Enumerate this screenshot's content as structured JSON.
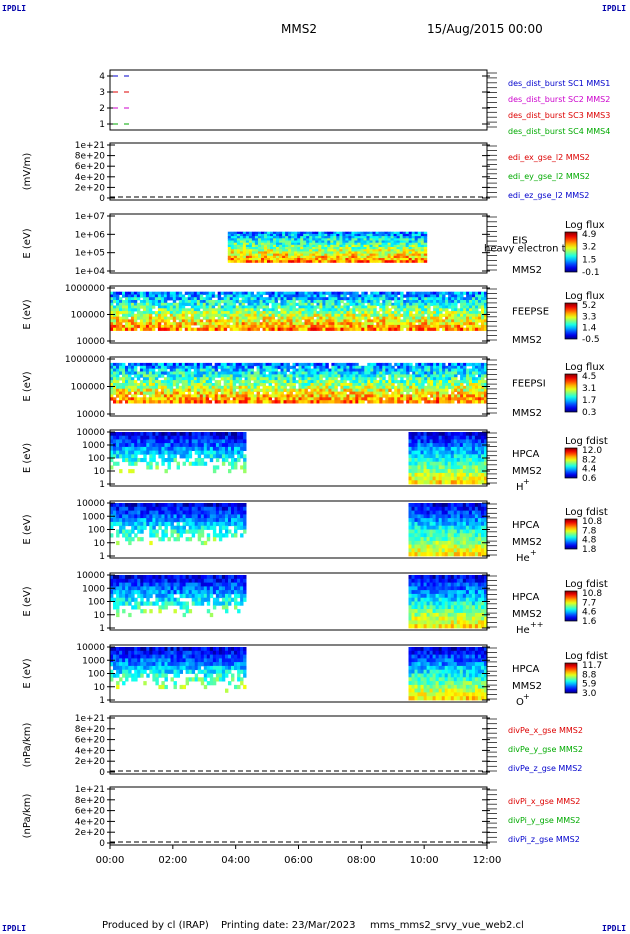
{
  "header": {
    "corner_label": "IPDLI",
    "spacecraft": "MMS2",
    "datetime": "15/Aug/2015 00:00"
  },
  "footer": {
    "produced_by": "Produced by cl (IRAP)",
    "printing_date": "Printing date: 23/Mar/2023",
    "filename": "mms_mms2_srvy_vue_web2.cl"
  },
  "colors": {
    "mms1": "#00aa00",
    "mms2": "#cc00cc",
    "mms3": "#dd0000",
    "mms4": "#0000cc",
    "x_comp": "#dd0000",
    "y_comp": "#00aa00",
    "z_comp": "#0000cc"
  },
  "chart_data": [
    {
      "type": "line",
      "panel": "burst",
      "ylabel": "",
      "yticks": [
        "4",
        "3",
        "2",
        "1"
      ],
      "legend": [
        {
          "name": "des_dist_burst SC1 MMS1",
          "color": "#0000cc"
        },
        {
          "name": "des_dist_burst SC2 MMS2",
          "color": "#cc00cc"
        },
        {
          "name": "des_dist_burst SC3 MMS3",
          "color": "#dd0000"
        },
        {
          "name": "des_dist_burst SC4 MMS4",
          "color": "#00aa00"
        }
      ],
      "segments": [
        {
          "sc": 4,
          "x": [
            "00:00",
            "00:30"
          ]
        },
        {
          "sc": 3,
          "x": [
            "00:00",
            "00:30"
          ]
        },
        {
          "sc": 2,
          "x": [
            "00:00",
            "00:30"
          ]
        },
        {
          "sc": 1,
          "x": [
            "00:00",
            "00:30"
          ]
        }
      ]
    },
    {
      "type": "line",
      "panel": "edi",
      "ylabel": "(mV/m)",
      "yticks": [
        "1e+21",
        "8e+20",
        "6e+20",
        "4e+20",
        "2e+20",
        "0"
      ],
      "legend": [
        {
          "name": "edi_ex_gse_l2 MMS2",
          "color": "#dd0000"
        },
        {
          "name": "edi_ey_gse_l2 MMS2",
          "color": "#00aa00"
        },
        {
          "name": "edi_ez_gse_l2 MMS2",
          "color": "#0000cc"
        }
      ]
    },
    {
      "type": "heatmap",
      "panel": "eis",
      "ylabel": "E (eV)",
      "yticks": [
        "1e+07",
        "1e+06",
        "1e+05",
        "1e+04"
      ],
      "instrument": "EIS",
      "instrument_sub": "heavy electron tof",
      "spacecraft": "MMS2",
      "colorbar_title": "Log flux",
      "colorbar_ticks": [
        "4.9",
        "3.2",
        "1.5",
        "-0.1"
      ],
      "coverage": [
        [
          "03:45",
          "10:05"
        ]
      ]
    },
    {
      "type": "heatmap",
      "panel": "feepse",
      "ylabel": "E (eV)",
      "yticks": [
        "1000000",
        "100000",
        "10000"
      ],
      "instrument": "FEEPSE",
      "spacecraft": "MMS2",
      "colorbar_title": "Log flux",
      "colorbar_ticks": [
        "5.2",
        "3.3",
        "1.4",
        "-0.5"
      ],
      "coverage": [
        [
          "00:00",
          "12:00"
        ]
      ]
    },
    {
      "type": "heatmap",
      "panel": "feepsi",
      "ylabel": "E (eV)",
      "yticks": [
        "1000000",
        "100000",
        "10000"
      ],
      "instrument": "FEEPSI",
      "spacecraft": "MMS2",
      "colorbar_title": "Log flux",
      "colorbar_ticks": [
        "4.5",
        "3.1",
        "1.7",
        "0.3"
      ],
      "coverage": [
        [
          "00:00",
          "12:00"
        ]
      ]
    },
    {
      "type": "heatmap",
      "panel": "hpca_h",
      "ylabel": "E (eV)",
      "yticks": [
        "10000",
        "1000",
        "100",
        "10",
        "1"
      ],
      "instrument": "HPCA",
      "spacecraft": "MMS2",
      "species": "H",
      "species_sup": "+",
      "colorbar_title": "Log fdist",
      "colorbar_ticks": [
        "12.0",
        "8.2",
        "4.4",
        "0.6"
      ],
      "coverage": [
        [
          "00:00",
          "04:20"
        ],
        [
          "09:30",
          "12:00"
        ]
      ]
    },
    {
      "type": "heatmap",
      "panel": "hpca_he",
      "ylabel": "E (eV)",
      "yticks": [
        "10000",
        "1000",
        "100",
        "10",
        "1"
      ],
      "instrument": "HPCA",
      "spacecraft": "MMS2",
      "species": "He",
      "species_sup": "+",
      "colorbar_title": "Log fdist",
      "colorbar_ticks": [
        "10.8",
        "7.8",
        "4.8",
        "1.8"
      ],
      "coverage": [
        [
          "00:00",
          "04:20"
        ],
        [
          "09:30",
          "12:00"
        ]
      ]
    },
    {
      "type": "heatmap",
      "panel": "hpca_hepp",
      "ylabel": "E (eV)",
      "yticks": [
        "10000",
        "1000",
        "100",
        "10",
        "1"
      ],
      "instrument": "HPCA",
      "spacecraft": "MMS2",
      "species": "He",
      "species_sup": "++",
      "colorbar_title": "Log fdist",
      "colorbar_ticks": [
        "10.8",
        "7.7",
        "4.6",
        "1.6"
      ],
      "coverage": [
        [
          "00:00",
          "04:20"
        ],
        [
          "09:30",
          "12:00"
        ]
      ]
    },
    {
      "type": "heatmap",
      "panel": "hpca_o",
      "ylabel": "E (eV)",
      "yticks": [
        "10000",
        "1000",
        "100",
        "10",
        "1"
      ],
      "instrument": "HPCA",
      "spacecraft": "MMS2",
      "species": "O",
      "species_sup": "+",
      "colorbar_title": "Log fdist",
      "colorbar_ticks": [
        "11.7",
        "8.8",
        "5.9",
        "3.0"
      ],
      "coverage": [
        [
          "00:00",
          "04:20"
        ],
        [
          "09:30",
          "12:00"
        ]
      ]
    },
    {
      "type": "line",
      "panel": "divpe",
      "ylabel": "(nPa/km)",
      "yticks": [
        "1e+21",
        "8e+20",
        "6e+20",
        "4e+20",
        "2e+20",
        "0"
      ],
      "legend": [
        {
          "name": "divPe_x_gse MMS2",
          "color": "#dd0000"
        },
        {
          "name": "divPe_y_gse MMS2",
          "color": "#00aa00"
        },
        {
          "name": "divPe_z_gse MMS2",
          "color": "#0000cc"
        }
      ]
    },
    {
      "type": "line",
      "panel": "divpi",
      "ylabel": "(nPa/km)",
      "yticks": [
        "1e+21",
        "8e+20",
        "6e+20",
        "4e+20",
        "2e+20",
        "0"
      ],
      "legend": [
        {
          "name": "divPi_x_gse MMS2",
          "color": "#dd0000"
        },
        {
          "name": "divPi_y_gse MMS2",
          "color": "#00aa00"
        },
        {
          "name": "divPi_z_gse MMS2",
          "color": "#0000cc"
        }
      ]
    }
  ],
  "x_axis": {
    "ticks": [
      "00:00",
      "02:00",
      "04:00",
      "06:00",
      "08:00",
      "10:00",
      "12:00"
    ]
  }
}
